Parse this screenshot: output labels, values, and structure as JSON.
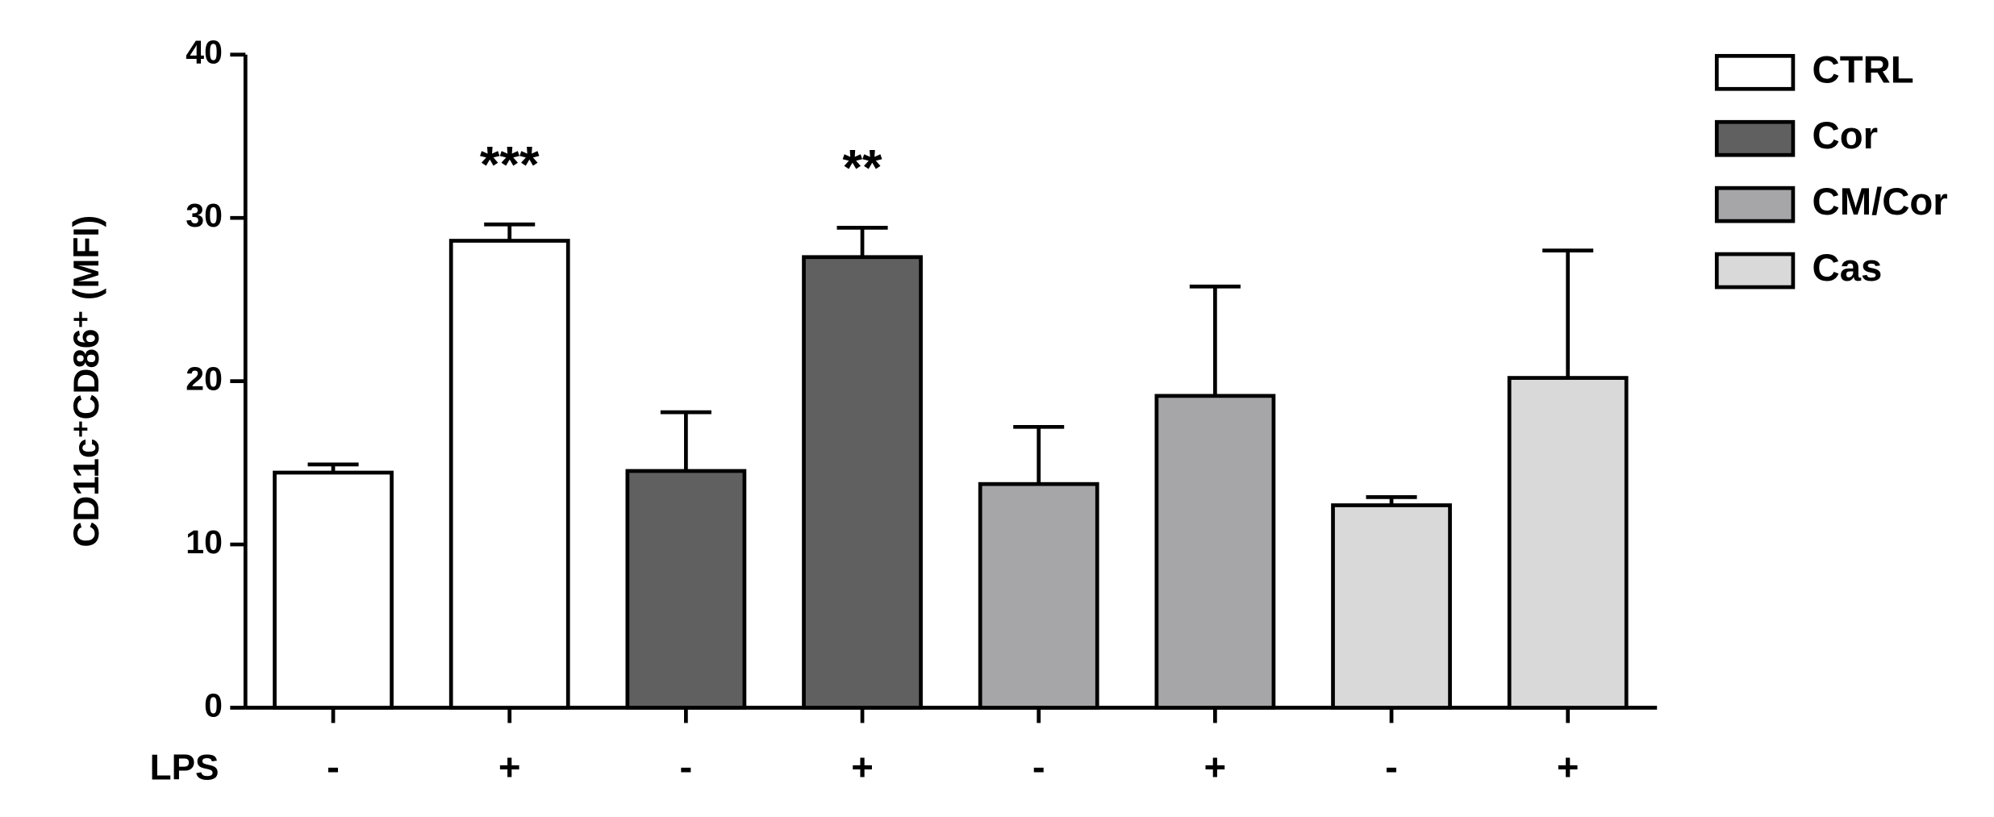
{
  "chart_data": {
    "type": "bar",
    "y_label": "CD11c⁺CD86⁺ (MFI)",
    "x_label": "LPS",
    "categories": [
      "-",
      "+",
      "-",
      "+",
      "-",
      "+",
      "-",
      "+"
    ],
    "series": [
      {
        "name": "CTRL",
        "color": "#ffffff",
        "values": [
          14.4,
          28.6,
          null,
          null,
          null,
          null,
          null,
          null
        ],
        "errors": [
          0.5,
          1.0,
          null,
          null,
          null,
          null,
          null,
          null
        ],
        "annotations": [
          null,
          "***",
          null,
          null,
          null,
          null,
          null,
          null
        ]
      },
      {
        "name": "Cor",
        "color": "#606060",
        "values": [
          null,
          null,
          14.5,
          27.6,
          null,
          null,
          null,
          null
        ],
        "errors": [
          null,
          null,
          3.6,
          1.8,
          null,
          null,
          null,
          null
        ],
        "annotations": [
          null,
          null,
          null,
          "**",
          null,
          null,
          null,
          null
        ]
      },
      {
        "name": "CM/Cor",
        "color": "#a6a6a8",
        "values": [
          null,
          null,
          null,
          null,
          13.7,
          19.1,
          null,
          null
        ],
        "errors": [
          null,
          null,
          null,
          null,
          3.5,
          6.7,
          null,
          null
        ]
      },
      {
        "name": "Cas",
        "color": "#d9d9d9",
        "values": [
          null,
          null,
          null,
          null,
          null,
          null,
          12.4,
          20.2
        ],
        "errors": [
          null,
          null,
          null,
          null,
          null,
          null,
          0.5,
          7.8
        ]
      }
    ],
    "ylim": [
      0,
      40
    ],
    "yticks": [
      0,
      10,
      20,
      30,
      40
    ],
    "legend": "right"
  }
}
